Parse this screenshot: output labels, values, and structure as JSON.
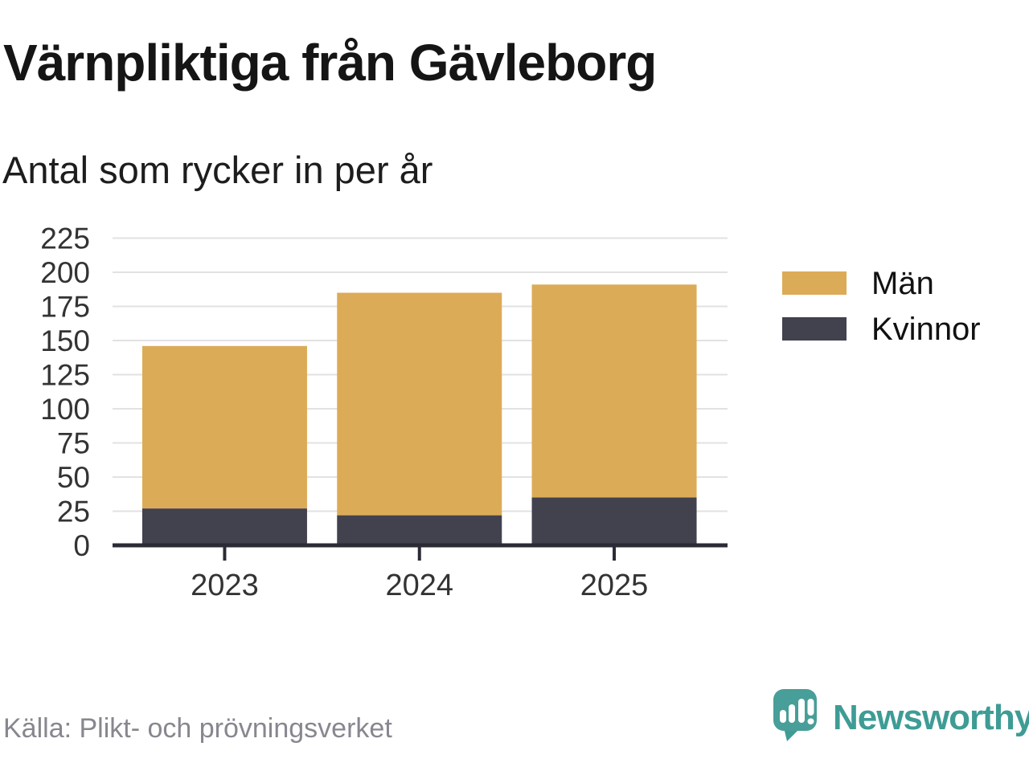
{
  "header": {
    "title": "Värnpliktiga från Gävleborg",
    "subtitle": "Antal som rycker in per år"
  },
  "chart_data": {
    "type": "bar",
    "stacked": true,
    "title": "Värnpliktiga från Gävleborg",
    "subtitle": "Antal som rycker in per år",
    "categories": [
      "2023",
      "2024",
      "2025"
    ],
    "series": [
      {
        "name": "Kvinnor",
        "color": "#42414e",
        "values": [
          27,
          22,
          35
        ]
      },
      {
        "name": "Män",
        "color": "#dcab57",
        "values": [
          119,
          163,
          156
        ]
      }
    ],
    "totals": [
      146,
      185,
      191
    ],
    "ylabel": "",
    "xlabel": "",
    "ylim": [
      0,
      225
    ],
    "y_ticks": [
      0,
      25,
      50,
      75,
      100,
      125,
      150,
      175,
      200,
      225
    ],
    "grid": true,
    "legend": [
      "Män",
      "Kvinnor"
    ],
    "legend_position": "right"
  },
  "footer": {
    "source": "Källa: Plikt- och prövningsverket",
    "brand": "Newsworthy"
  },
  "colors": {
    "man": "#dcab57",
    "kvinnor": "#42414e",
    "brand_teal": "#3e9c95",
    "grid": "#e2e2e2",
    "axis": "#2b2b35",
    "tick_text": "#333333"
  }
}
